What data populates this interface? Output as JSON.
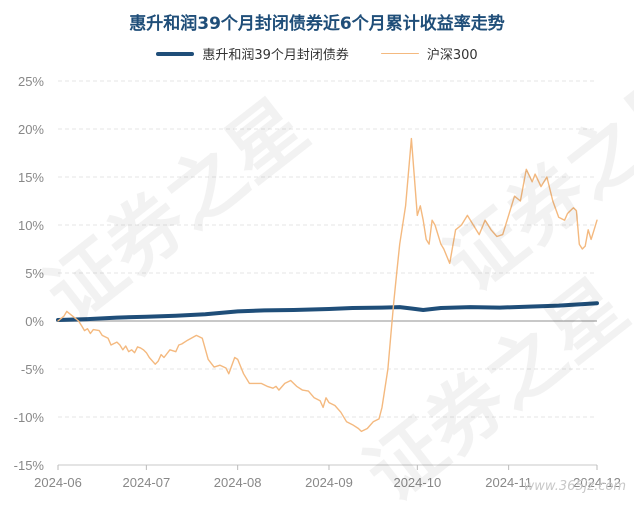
{
  "chart_data": {
    "type": "line",
    "title": "惠升和润39个月封闭债券近6个月累计收益率走势",
    "yticks": [
      "25%",
      "20%",
      "15%",
      "10%",
      "5%",
      "0%",
      "-5%",
      "-10%",
      "-15%"
    ],
    "ytick_values": [
      25,
      20,
      15,
      10,
      5,
      0,
      -5,
      -10,
      -15
    ],
    "ylim": [
      -15,
      25
    ],
    "xlim": [
      0,
      183
    ],
    "xticks": [
      {
        "label": "2024-06",
        "day": 0
      },
      {
        "label": "2024-07",
        "day": 30
      },
      {
        "label": "2024-08",
        "day": 61
      },
      {
        "label": "2024-09",
        "day": 92
      },
      {
        "label": "2024-10",
        "day": 122
      },
      {
        "label": "2024-11",
        "day": 153
      },
      {
        "label": "2024-12",
        "day": 183
      }
    ],
    "grid": "horizontal",
    "legend_position": "top",
    "series": [
      {
        "name": "惠升和润39个月封闭债券",
        "color": "#1f4e79",
        "points": [
          [
            0,
            0.1
          ],
          [
            10,
            0.2
          ],
          [
            20,
            0.35
          ],
          [
            30,
            0.45
          ],
          [
            40,
            0.55
          ],
          [
            50,
            0.7
          ],
          [
            61,
            1.0
          ],
          [
            70,
            1.1
          ],
          [
            80,
            1.15
          ],
          [
            92,
            1.25
          ],
          [
            100,
            1.35
          ],
          [
            110,
            1.4
          ],
          [
            116,
            1.45
          ],
          [
            120,
            1.3
          ],
          [
            124,
            1.15
          ],
          [
            130,
            1.35
          ],
          [
            140,
            1.45
          ],
          [
            150,
            1.4
          ],
          [
            160,
            1.5
          ],
          [
            170,
            1.6
          ],
          [
            183,
            1.85
          ]
        ]
      },
      {
        "name": "沪深300",
        "color": "#f4b97f",
        "points": [
          [
            0,
            0
          ],
          [
            2,
            0.5
          ],
          [
            3,
            1.0
          ],
          [
            5,
            0.5
          ],
          [
            7,
            0
          ],
          [
            8,
            -0.5
          ],
          [
            9,
            -1.0
          ],
          [
            10,
            -0.8
          ],
          [
            11,
            -1.3
          ],
          [
            12,
            -0.9
          ],
          [
            14,
            -1.0
          ],
          [
            15,
            -1.5
          ],
          [
            17,
            -1.8
          ],
          [
            18,
            -2.5
          ],
          [
            20,
            -2.2
          ],
          [
            21,
            -2.5
          ],
          [
            22,
            -3.0
          ],
          [
            23,
            -2.6
          ],
          [
            24,
            -3.2
          ],
          [
            25,
            -3.0
          ],
          [
            26,
            -3.3
          ],
          [
            27,
            -2.7
          ],
          [
            28,
            -2.8
          ],
          [
            29,
            -3.0
          ],
          [
            30,
            -3.3
          ],
          [
            31,
            -3.8
          ],
          [
            33,
            -4.5
          ],
          [
            34,
            -4.2
          ],
          [
            35,
            -3.5
          ],
          [
            36,
            -3.8
          ],
          [
            38,
            -3.0
          ],
          [
            40,
            -3.2
          ],
          [
            41,
            -2.5
          ],
          [
            42,
            -2.4
          ],
          [
            44,
            -2.0
          ],
          [
            47,
            -1.5
          ],
          [
            49,
            -1.8
          ],
          [
            51,
            -4.0
          ],
          [
            53,
            -4.8
          ],
          [
            55,
            -4.6
          ],
          [
            57,
            -4.9
          ],
          [
            58,
            -5.5
          ],
          [
            60,
            -3.8
          ],
          [
            61,
            -4.0
          ],
          [
            63,
            -5.5
          ],
          [
            65,
            -6.5
          ],
          [
            67,
            -6.5
          ],
          [
            69,
            -6.5
          ],
          [
            71,
            -6.8
          ],
          [
            73,
            -7.0
          ],
          [
            74,
            -6.8
          ],
          [
            75,
            -7.2
          ],
          [
            77,
            -6.5
          ],
          [
            79,
            -6.2
          ],
          [
            81,
            -6.8
          ],
          [
            83,
            -7.2
          ],
          [
            85,
            -7.3
          ],
          [
            87,
            -8.0
          ],
          [
            89,
            -8.3
          ],
          [
            90,
            -9.0
          ],
          [
            91,
            -8.0
          ],
          [
            92,
            -8.5
          ],
          [
            94,
            -8.8
          ],
          [
            96,
            -9.5
          ],
          [
            98,
            -10.5
          ],
          [
            100,
            -10.8
          ],
          [
            102,
            -11.2
          ],
          [
            103,
            -11.5
          ],
          [
            105,
            -11.2
          ],
          [
            107,
            -10.5
          ],
          [
            109,
            -10.2
          ],
          [
            110,
            -9.0
          ],
          [
            112,
            -5.0
          ],
          [
            113,
            -1.5
          ],
          [
            114,
            2.0
          ],
          [
            115,
            5.0
          ],
          [
            116,
            8.0
          ],
          [
            118,
            12.0
          ],
          [
            120,
            19.0
          ],
          [
            122,
            11.0
          ],
          [
            123,
            12.0
          ],
          [
            124,
            10.5
          ],
          [
            125,
            8.5
          ],
          [
            126,
            8.0
          ],
          [
            127,
            10.5
          ],
          [
            128,
            10.0
          ],
          [
            130,
            8.0
          ],
          [
            131,
            7.5
          ],
          [
            133,
            6.0
          ],
          [
            135,
            9.5
          ],
          [
            137,
            10.0
          ],
          [
            139,
            11.0
          ],
          [
            141,
            10.0
          ],
          [
            143,
            9.0
          ],
          [
            145,
            10.5
          ],
          [
            147,
            9.5
          ],
          [
            149,
            8.8
          ],
          [
            151,
            9.0
          ],
          [
            153,
            11.0
          ],
          [
            155,
            13.0
          ],
          [
            157,
            12.5
          ],
          [
            159,
            15.8
          ],
          [
            161,
            14.5
          ],
          [
            162,
            15.3
          ],
          [
            164,
            14.0
          ],
          [
            166,
            15.0
          ],
          [
            168,
            12.5
          ],
          [
            170,
            10.8
          ],
          [
            172,
            10.5
          ],
          [
            173,
            11.2
          ],
          [
            175,
            11.8
          ],
          [
            176,
            11.5
          ],
          [
            177,
            8.0
          ],
          [
            178,
            7.5
          ],
          [
            179,
            7.8
          ],
          [
            180,
            9.5
          ],
          [
            181,
            8.5
          ],
          [
            182,
            9.5
          ],
          [
            183,
            10.5
          ]
        ]
      }
    ]
  },
  "watermark_text": "证券之星",
  "site_text": "www.365jz.com"
}
